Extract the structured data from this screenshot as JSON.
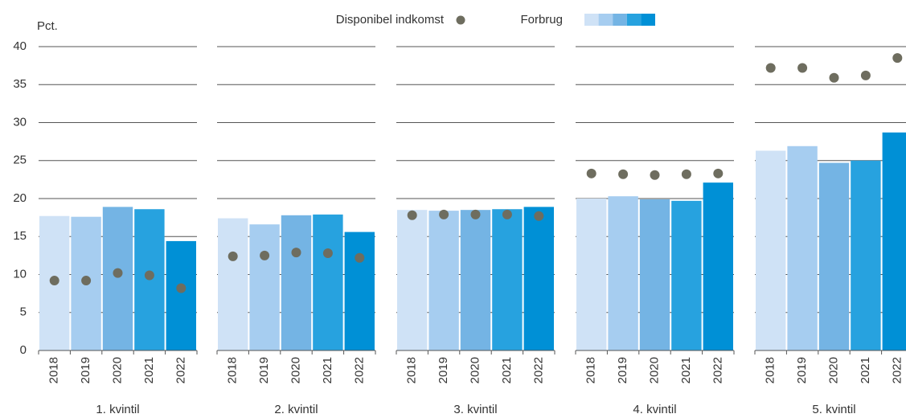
{
  "chart_data": {
    "type": "bar",
    "y_label": "Pct.",
    "ylim": [
      0,
      40
    ],
    "yticks": [
      0,
      5,
      10,
      15,
      20,
      25,
      30,
      35,
      40
    ],
    "grid": true,
    "legend": "top",
    "categories": [
      "2018",
      "2019",
      "2020",
      "2021",
      "2022"
    ],
    "groups": [
      "1. kvintil",
      "2. kvintil",
      "3. kvintil",
      "4. kvintil",
      "5. kvintil"
    ],
    "series": [
      {
        "name": "Disponibel indkomst",
        "color": "#6e6d5f",
        "marker": "dot",
        "values": [
          [
            9.2,
            9.2,
            10.2,
            9.9,
            8.2
          ],
          [
            12.4,
            12.5,
            12.9,
            12.8,
            12.2
          ],
          [
            17.8,
            17.9,
            17.9,
            17.9,
            17.7
          ],
          [
            23.3,
            23.2,
            23.1,
            23.2,
            23.3
          ],
          [
            37.2,
            37.2,
            35.9,
            36.2,
            38.5
          ]
        ]
      },
      {
        "name": "Forbrug",
        "colors": [
          "#cfe2f6",
          "#a6cdf0",
          "#74b4e4",
          "#27a2df",
          "#0090d6"
        ],
        "marker": "bar",
        "values": [
          [
            17.7,
            17.6,
            18.9,
            18.6,
            14.4
          ],
          [
            17.4,
            16.6,
            17.8,
            17.9,
            15.6
          ],
          [
            18.5,
            18.4,
            18.5,
            18.6,
            18.9
          ],
          [
            20.0,
            20.3,
            19.9,
            19.7,
            22.1
          ],
          [
            26.3,
            26.9,
            24.7,
            25.0,
            28.7
          ]
        ]
      }
    ]
  }
}
